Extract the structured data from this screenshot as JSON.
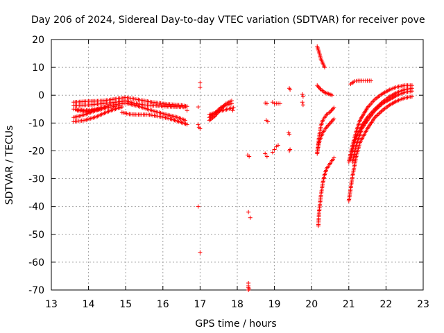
{
  "chart_data": {
    "type": "scatter",
    "title": "Day 206 of 2024, Sidereal Day-to-day VTEC variation (SDTVAR) for receiver pove",
    "xlabel": "GPS time / hours",
    "ylabel": "SDTVAR / TECUs",
    "xlim": [
      13,
      23
    ],
    "ylim": [
      -70,
      20
    ],
    "xticks": [
      13,
      14,
      15,
      16,
      17,
      18,
      19,
      20,
      21,
      22,
      23
    ],
    "yticks": [
      -70,
      -60,
      -50,
      -40,
      -30,
      -20,
      -10,
      0,
      10,
      20
    ],
    "grid": true,
    "marker": "+",
    "color": "#ff0000",
    "series": [
      {
        "name": "arc-a1",
        "x": [
          13.6,
          14.0,
          14.4,
          14.8,
          15.0,
          15.3,
          15.7,
          16.1,
          16.5,
          16.65
        ],
        "y": [
          -2.5,
          -2.2,
          -2.0,
          -1.2,
          -0.8,
          -1.5,
          -2.5,
          -3.2,
          -3.6,
          -4.0
        ]
      },
      {
        "name": "arc-a2",
        "x": [
          13.6,
          14.0,
          14.4,
          14.8,
          15.0,
          15.2,
          15.5,
          16.0,
          16.4,
          16.6
        ],
        "y": [
          -3.8,
          -3.5,
          -3.0,
          -2.4,
          -2.0,
          -2.8,
          -3.5,
          -4.0,
          -4.2,
          -4.3
        ]
      },
      {
        "name": "arc-a3",
        "x": [
          13.6,
          13.9,
          14.2,
          14.5,
          14.8,
          15.0,
          15.3,
          15.7,
          16.1,
          16.4,
          16.6
        ],
        "y": [
          -5.0,
          -5.5,
          -5.0,
          -4.0,
          -3.2,
          -2.8,
          -3.8,
          -5.5,
          -7.0,
          -8.0,
          -9.0
        ]
      },
      {
        "name": "arc-a4",
        "x": [
          13.6,
          13.9,
          14.2,
          14.5,
          14.8
        ],
        "y": [
          -8.0,
          -7.0,
          -5.5,
          -4.5,
          -3.8
        ]
      },
      {
        "name": "arc-a5",
        "x": [
          13.6,
          13.9,
          14.2,
          14.5,
          14.8,
          14.9
        ],
        "y": [
          -9.5,
          -9.0,
          -7.8,
          -6.0,
          -4.6,
          -4.2
        ]
      },
      {
        "name": "arc-a6",
        "x": [
          14.9,
          15.1,
          15.3,
          15.6,
          15.9,
          16.2,
          16.5,
          16.65
        ],
        "y": [
          -6.2,
          -6.8,
          -7.0,
          -7.0,
          -7.6,
          -8.5,
          -9.8,
          -10.5
        ]
      },
      {
        "name": "arc-a7",
        "x": [
          13.7,
          14.0,
          14.3
        ],
        "y": [
          -5.5,
          -5.8,
          -5.0
        ]
      },
      {
        "name": "pts-1665",
        "x": [
          16.65
        ],
        "y": [
          -5.5
        ]
      },
      {
        "name": "pts-17",
        "x": [
          16.95,
          16.95,
          16.97,
          17.0,
          17.0,
          17.0,
          16.95,
          17.0
        ],
        "y": [
          -4.2,
          -10.5,
          -11.5,
          -12.0,
          2.8,
          4.5,
          -40.0,
          -56.5
        ]
      },
      {
        "name": "arc-b1",
        "x": [
          17.25,
          17.4,
          17.55,
          17.7,
          17.85
        ],
        "y": [
          -9.0,
          -7.5,
          -5.0,
          -3.0,
          -2.0
        ]
      },
      {
        "name": "arc-b2",
        "x": [
          17.25,
          17.4,
          17.55,
          17.7,
          17.85
        ],
        "y": [
          -8.0,
          -6.5,
          -4.5,
          -3.5,
          -3.0
        ]
      },
      {
        "name": "arc-b3",
        "x": [
          17.25,
          17.45,
          17.6,
          17.75,
          17.9
        ],
        "y": [
          -7.0,
          -6.0,
          -5.5,
          -5.0,
          -4.5
        ]
      },
      {
        "name": "pts-1788",
        "x": [
          17.88
        ],
        "y": [
          -5.5
        ]
      },
      {
        "name": "pts-18",
        "x": [
          18.28,
          18.32,
          18.3,
          18.35
        ],
        "y": [
          -21.5,
          -22.0,
          -42.0,
          -44.0
        ]
      },
      {
        "name": "pts-1830b",
        "x": [
          18.3,
          18.3,
          18.3,
          18.32,
          18.3
        ],
        "y": [
          -67.5,
          -68.5,
          -69.2,
          -69.6,
          -70.0
        ]
      },
      {
        "name": "pts-1875",
        "x": [
          18.75,
          18.8,
          18.78,
          18.82,
          18.75,
          18.8
        ],
        "y": [
          -2.8,
          -3.0,
          -9.0,
          -9.5,
          -21.0,
          -22.0
        ]
      },
      {
        "name": "pts-190",
        "x": [
          18.95,
          19.0,
          19.05,
          19.1
        ],
        "y": [
          -20.5,
          -19.5,
          -18.5,
          -18.0
        ]
      },
      {
        "name": "pts-1905",
        "x": [
          18.95,
          19.0,
          19.05,
          19.1,
          19.15
        ],
        "y": [
          -2.5,
          -3.0,
          -3.0,
          -3.0,
          -3.0
        ]
      },
      {
        "name": "pts-194",
        "x": [
          19.4,
          19.42,
          19.38,
          19.4,
          19.42,
          19.4
        ],
        "y": [
          2.5,
          2.0,
          -13.5,
          -14.0,
          -19.5,
          -20.0
        ]
      },
      {
        "name": "pts-1975",
        "x": [
          19.75,
          19.77,
          19.75,
          19.77
        ],
        "y": [
          0.3,
          -0.5,
          -2.5,
          -3.5
        ]
      },
      {
        "name": "arc-c1",
        "x": [
          20.15,
          20.2,
          20.25,
          20.3,
          20.35
        ],
        "y": [
          17.5,
          15.5,
          13.0,
          11.5,
          10.0
        ]
      },
      {
        "name": "arc-c2",
        "x": [
          20.15,
          20.25,
          20.35,
          20.45,
          20.55
        ],
        "y": [
          3.5,
          2.0,
          1.0,
          0.5,
          0.0
        ]
      },
      {
        "name": "arc-c3",
        "x": [
          20.15,
          20.2,
          20.25,
          20.3,
          20.4,
          20.5,
          20.6
        ],
        "y": [
          -21.0,
          -15.0,
          -11.0,
          -9.0,
          -7.0,
          -6.0,
          -4.5
        ]
      },
      {
        "name": "arc-c4",
        "x": [
          20.15,
          20.2,
          20.25,
          20.3,
          20.4,
          20.5,
          20.6
        ],
        "y": [
          -20.5,
          -17.0,
          -15.0,
          -13.5,
          -11.5,
          -10.0,
          -8.5
        ]
      },
      {
        "name": "arc-c5",
        "x": [
          20.18,
          20.2,
          20.25,
          20.3,
          20.35,
          20.4,
          20.5,
          20.6
        ],
        "y": [
          -47.0,
          -42.0,
          -36.0,
          -31.5,
          -28.5,
          -26.5,
          -24.5,
          -22.5
        ]
      },
      {
        "name": "arc-d1",
        "x": [
          21.05,
          21.15,
          21.25,
          21.35,
          21.45,
          21.55,
          21.6
        ],
        "y": [
          4.0,
          5.0,
          5.2,
          5.2,
          5.2,
          5.2,
          5.2
        ]
      },
      {
        "name": "arc-d2",
        "x": [
          21.0,
          21.1,
          21.2,
          21.3,
          21.5,
          21.7,
          21.9,
          22.1,
          22.3,
          22.5,
          22.7
        ],
        "y": [
          -24.0,
          -18.0,
          -13.0,
          -9.0,
          -4.5,
          -1.5,
          0.5,
          2.0,
          3.0,
          3.5,
          3.5
        ]
      },
      {
        "name": "arc-d3",
        "x": [
          21.05,
          21.15,
          21.25,
          21.35,
          21.5,
          21.7,
          21.9,
          22.1,
          22.3,
          22.5,
          22.7
        ],
        "y": [
          -23.0,
          -17.0,
          -13.5,
          -11.0,
          -8.0,
          -5.0,
          -2.5,
          -0.5,
          1.0,
          2.0,
          2.5
        ]
      },
      {
        "name": "arc-d4",
        "x": [
          21.0,
          21.1,
          21.2,
          21.3,
          21.5,
          21.7,
          21.9,
          22.1,
          22.3,
          22.5,
          22.7
        ],
        "y": [
          -38.0,
          -29.0,
          -22.0,
          -17.0,
          -12.0,
          -8.0,
          -5.5,
          -3.5,
          -2.0,
          -1.0,
          -0.5
        ]
      },
      {
        "name": "arc-d5",
        "x": [
          21.1,
          21.2,
          21.35,
          21.5,
          21.7,
          21.9,
          22.1,
          22.3,
          22.5,
          22.7
        ],
        "y": [
          -24.0,
          -18.0,
          -12.0,
          -9.0,
          -5.5,
          -3.0,
          -1.5,
          0.0,
          1.0,
          1.5
        ]
      }
    ]
  }
}
